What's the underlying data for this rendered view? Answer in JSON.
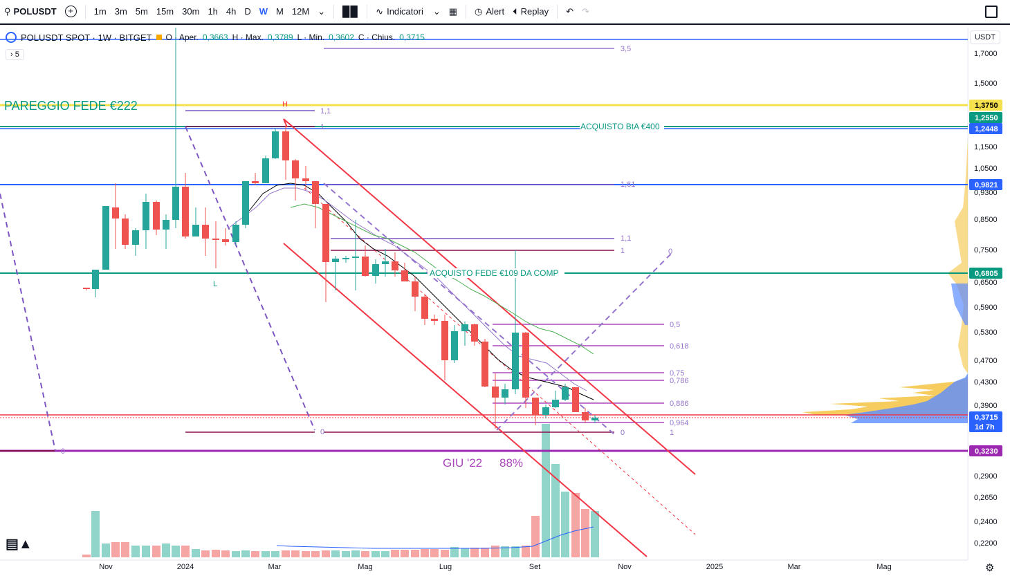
{
  "toolbar": {
    "symbol": "POLUSDT",
    "intervals": [
      "1m",
      "3m",
      "5m",
      "15m",
      "30m",
      "1h",
      "4h",
      "D",
      "W",
      "M",
      "12M"
    ],
    "active_interval": "W",
    "indicators_label": "Indicatori",
    "alert_label": "Alert",
    "replay_label": "Replay"
  },
  "legend": {
    "title": "POLUSDT SPOT · 1W · BITGET",
    "open_label": "O · Aper.",
    "open": "0,3663",
    "high_label": "H · Max.",
    "high": "0,3789",
    "low_label": "L · Min.",
    "low": "0,3602",
    "close_label": "C · Chius.",
    "close": "0,3715",
    "badge": "5"
  },
  "currency": "USDT",
  "colors": {
    "up": "#26a69a",
    "down": "#ef5350",
    "blue": "#2962ff",
    "yellow": "#f5e14b",
    "teal": "#089981",
    "purple": "#9c27b0",
    "red": "#f23645"
  },
  "annotations": {
    "pareggio": "PAREGGIO FEDE  €222",
    "acquisto_bta": "ACQUISTO BtA €400",
    "acquisto_fede": "ACQUISTO FEDE €109 DA COMP",
    "giu": "GIU '22",
    "pct": "88%",
    "H": "H",
    "L": "L"
  },
  "fib_labels": [
    "3,5",
    "1,1",
    "1",
    "1,61",
    "1,1",
    "1",
    "0",
    "0,5",
    "0,618",
    "0,75",
    "0,786",
    "0,886",
    "0,964",
    "1",
    "0",
    "0",
    "0"
  ],
  "price_labels": [
    "1,7000",
    "1,5000",
    "1,1500",
    "1,0500",
    "0,9300",
    "0,8500",
    "0,7500",
    "0,6500",
    "0,5900",
    "0,5300",
    "0,4700",
    "0,4300",
    "0,3900",
    "0,2900",
    "0,2650",
    "0,2400",
    "0,2200"
  ],
  "price_badges": [
    {
      "v": "1,3750",
      "color": "#f5e14b",
      "text": "#000"
    },
    {
      "v": "1,2550",
      "color": "#089981",
      "text": "#fff"
    },
    {
      "v": "1,2448",
      "color": "#2962ff",
      "text": "#fff"
    },
    {
      "v": "0,9821",
      "color": "#2962ff",
      "text": "#fff"
    },
    {
      "v": "0,6805",
      "color": "#089981",
      "text": "#fff"
    },
    {
      "v": "0,3715",
      "color": "#2962ff",
      "text": "#fff"
    },
    {
      "v": "1d 7h",
      "color": "#2962ff",
      "text": "#fff"
    },
    {
      "v": "0,3230",
      "color": "#9c27b0",
      "text": "#fff"
    }
  ],
  "time_labels": [
    "Nov",
    "2024",
    "Mar",
    "Mag",
    "Lug",
    "Set",
    "Nov",
    "2025",
    "Mar",
    "Mag"
  ]
}
